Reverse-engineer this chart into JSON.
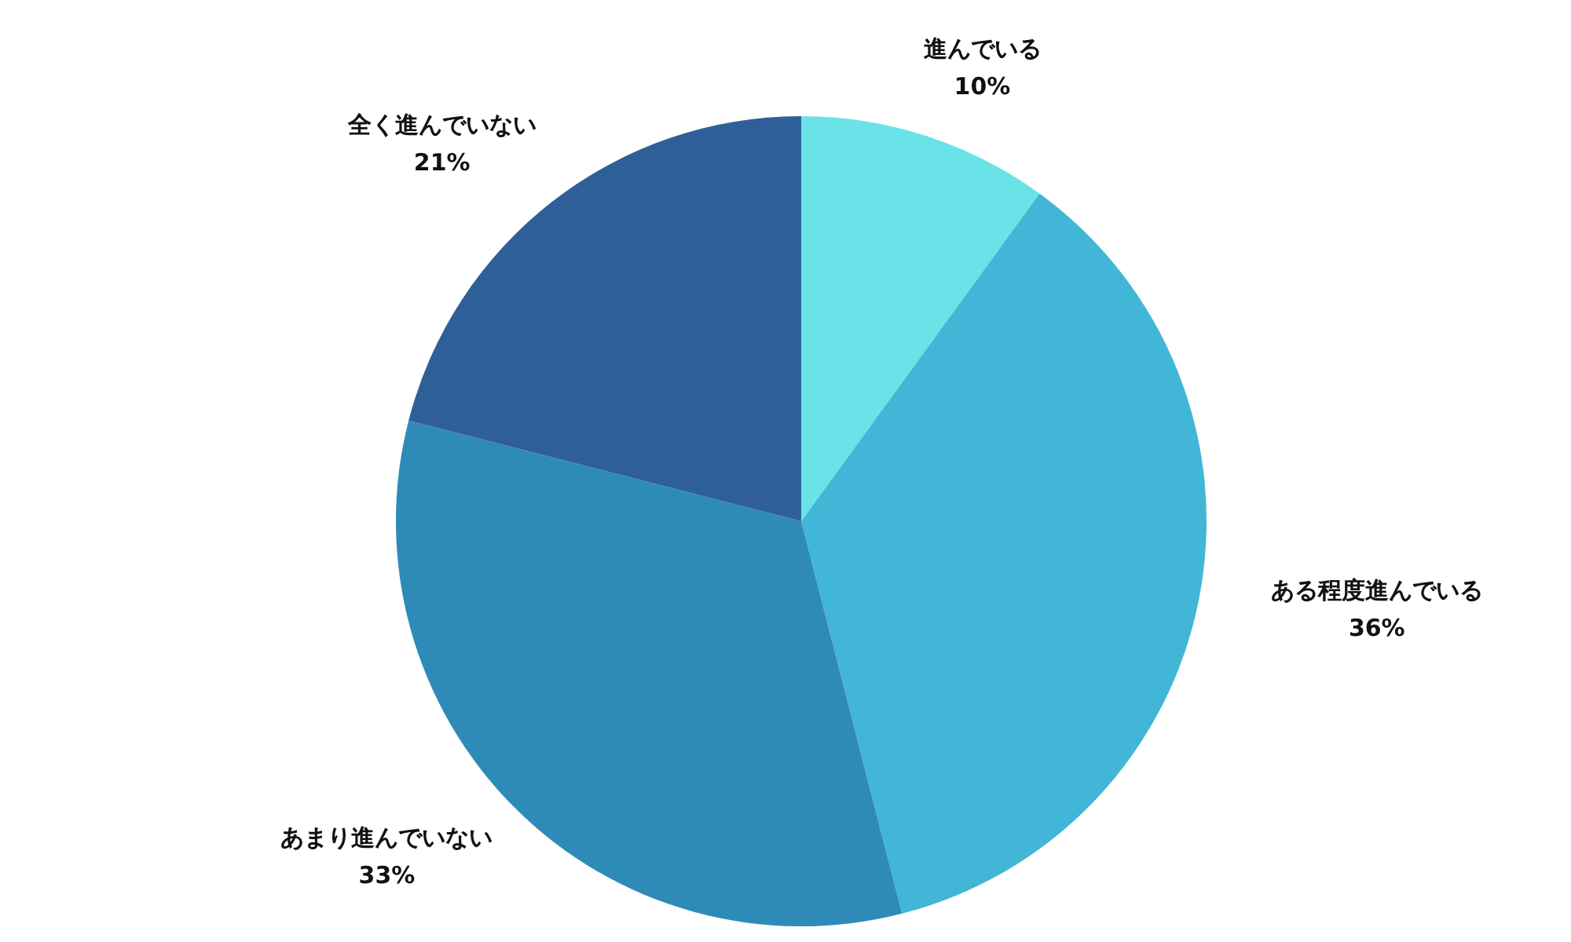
{
  "chart_data": {
    "type": "pie",
    "categories": [
      "進んでいる",
      "ある程度進んでいる",
      "あまり進んでいない",
      "全く進んでいない"
    ],
    "values": [
      10,
      36,
      33,
      21
    ],
    "colors": [
      "#6ae3e8",
      "#42b6d6",
      "#2e8bb8",
      "#2e5f98"
    ],
    "value_labels": [
      "10%",
      "36%",
      "33%",
      "21%"
    ],
    "legend": false
  }
}
